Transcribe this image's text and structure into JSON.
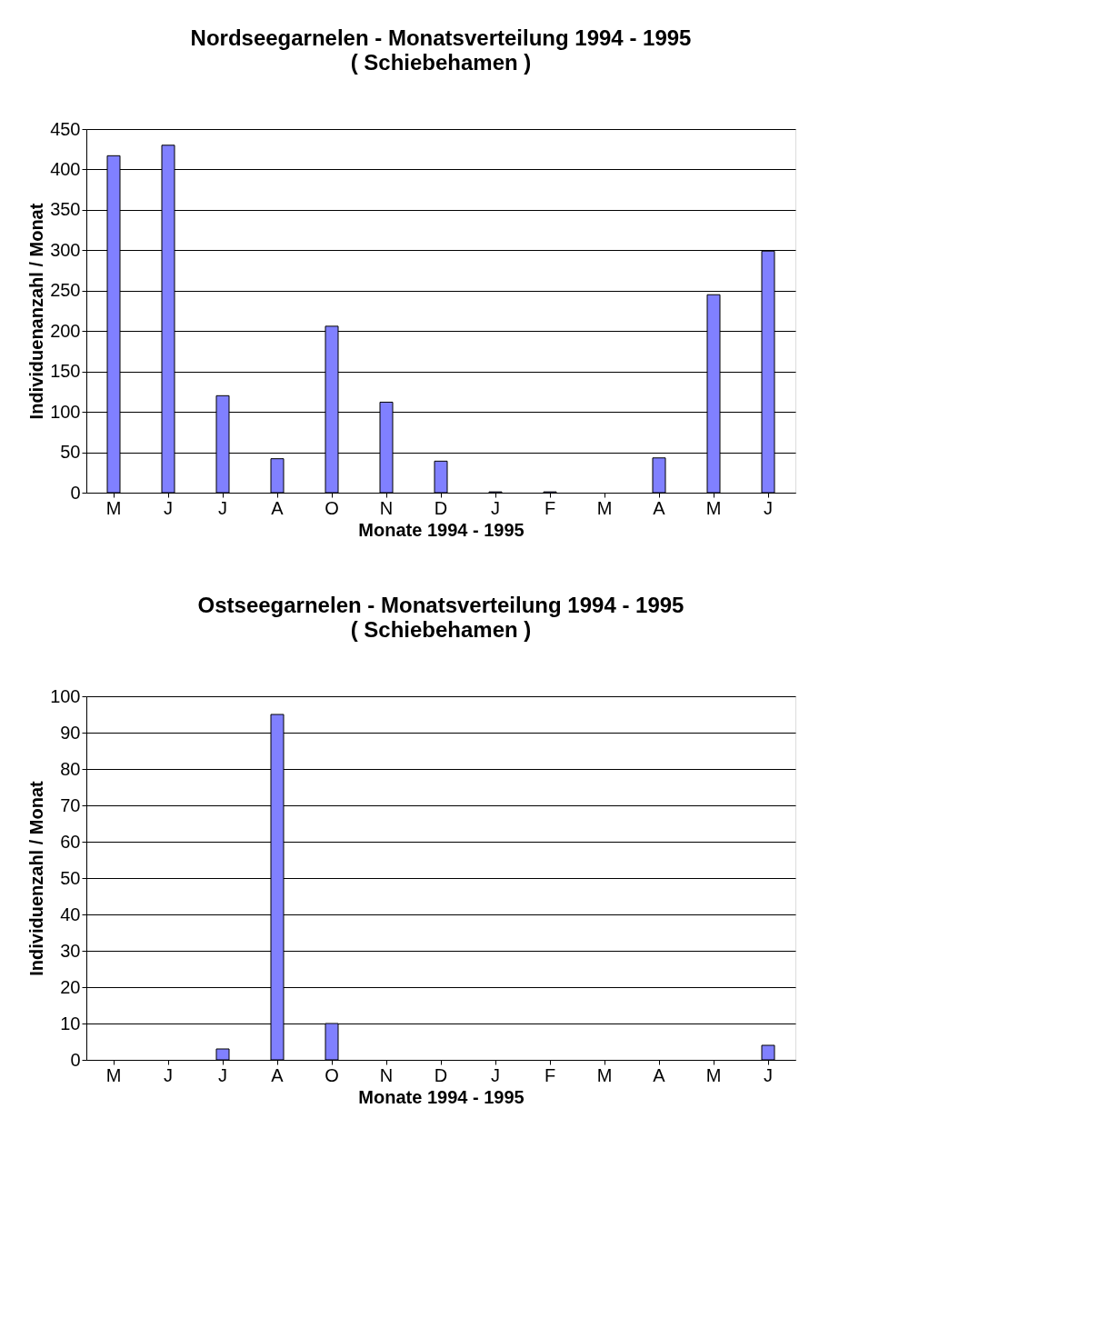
{
  "chart_data": [
    {
      "type": "bar",
      "title": "Nordseegarnelen - Monatsverteilung 1994 - 1995",
      "subtitle": "( Schiebehamen )",
      "xlabel": "Monate 1994 - 1995",
      "ylabel": "Individuenanzahl / Monat",
      "categories": [
        "M",
        "J",
        "J",
        "A",
        "O",
        "N",
        "D",
        "J",
        "F",
        "M",
        "A",
        "M",
        "J"
      ],
      "values": [
        417,
        430,
        120,
        42,
        206,
        112,
        39,
        1,
        1,
        0,
        43,
        245,
        299
      ],
      "color": "#8080ff",
      "ylim": [
        0,
        450
      ],
      "yticks": [
        0,
        50,
        100,
        150,
        200,
        250,
        300,
        350,
        400,
        450
      ],
      "grid": "y"
    },
    {
      "type": "bar",
      "title": "Ostseegarnelen - Monatsverteilung 1994 - 1995",
      "subtitle": "( Schiebehamen )",
      "xlabel": "Monate 1994 - 1995",
      "ylabel": "Individuenzahl / Monat",
      "categories": [
        "M",
        "J",
        "J",
        "A",
        "O",
        "N",
        "D",
        "J",
        "F",
        "M",
        "A",
        "M",
        "J"
      ],
      "values": [
        0,
        0,
        3,
        95,
        10,
        0,
        0,
        0,
        0,
        0,
        0,
        0,
        4
      ],
      "color": "#8080ff",
      "ylim": [
        0,
        100
      ],
      "yticks": [
        0,
        10,
        20,
        30,
        40,
        50,
        60,
        70,
        80,
        90,
        100
      ],
      "grid": "y"
    }
  ]
}
